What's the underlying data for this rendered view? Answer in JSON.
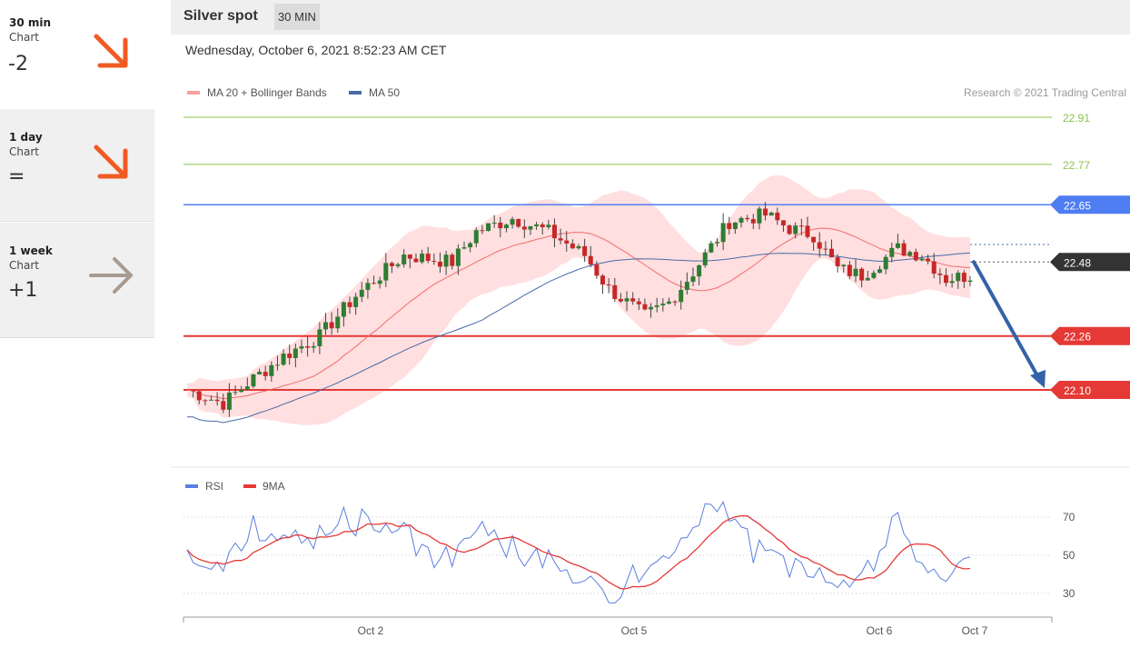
{
  "sidebar": {
    "items": [
      {
        "label": "30 min",
        "sub": "Chart",
        "score": "-2",
        "arrow": "arrow-down-right-icon",
        "color": "#f15a22"
      },
      {
        "label": "1 day",
        "sub": "Chart",
        "score": "=",
        "arrow": "arrow-down-right-icon",
        "color": "#f15a22"
      },
      {
        "label": "1 week",
        "sub": "Chart",
        "score": "+1",
        "arrow": "arrow-right-icon",
        "color": "#a89a8f"
      }
    ]
  },
  "header": {
    "title": "Silver spot",
    "badge": "30 MIN"
  },
  "timestamp": "Wednesday, October 6, 2021 8:52:23 AM CET",
  "colors": {
    "ma20": "#f26d6d",
    "ma50": "#4a6aa8",
    "band": "#ffd9d9",
    "up": "#2e7d32",
    "down": "#c62828",
    "resistance": "#8bc34a",
    "pivot": "#4f7df2",
    "support": "#e53935",
    "arrow": "#3462a8",
    "rsi": "#5b7fe0",
    "rsi_ma": "#e53935"
  },
  "chart_data": {
    "type": "candlestick",
    "legend": [
      "MA 20 + Bollinger Bands",
      "MA 50"
    ],
    "copyright": "Research © 2021 Trading Central",
    "levels": [
      {
        "value": 22.91,
        "label": "22.91",
        "kind": "resistance"
      },
      {
        "value": 22.77,
        "label": "22.77",
        "kind": "resistance"
      },
      {
        "value": 22.65,
        "label": "22.65",
        "kind": "pivot"
      },
      {
        "value": 22.48,
        "label": "22.48",
        "kind": "current"
      },
      {
        "value": 22.26,
        "label": "22.26",
        "kind": "support"
      },
      {
        "value": 22.1,
        "label": "22.10",
        "kind": "support"
      }
    ],
    "x_labels": [
      "Oct 2",
      "Oct 5",
      "Oct 6",
      "Oct 7"
    ],
    "rsi": {
      "legend": [
        "RSI",
        "9MA"
      ],
      "y_ticks": [
        70,
        50,
        30
      ],
      "ylim": [
        20,
        80
      ]
    }
  }
}
